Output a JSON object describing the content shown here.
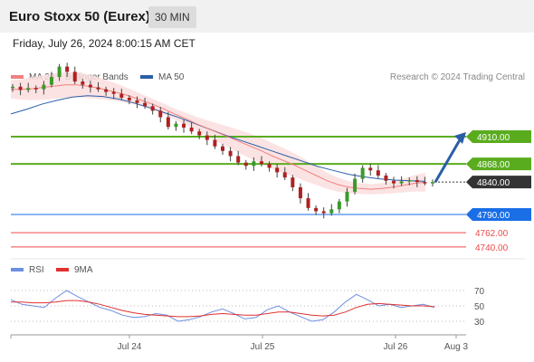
{
  "header": {
    "title": "Euro Stoxx 50 (Eurex)",
    "timeframe": "30 MIN",
    "timestamp": "Friday, July 26, 2024 8:00:15 AM CET"
  },
  "legend": {
    "ma20_label": "MA 20 + Bollinger Bands",
    "ma50_label": "MA 50",
    "credit": "Research © 2024 Trading Central",
    "rsi_label": "RSI",
    "ma9_label": "9MA"
  },
  "colors": {
    "ma20": "#f08080",
    "ma50": "#2a5fa8",
    "bollinger_fill": "#fcdede",
    "resistance": "#5aac1f",
    "current": "#333333",
    "support_blue": "#1a6ee6",
    "support_red": "#f04a4a",
    "arrow": "#2a5fa8",
    "rsi": "#6c8fe0",
    "rsi_ma9": "#e03030",
    "candle_up": "#3a9a2a",
    "candle_down": "#b02020"
  },
  "price_levels": [
    {
      "value": 4910.0,
      "label": "4910.00",
      "kind": "resistance"
    },
    {
      "value": 4868.0,
      "label": "4868.00",
      "kind": "resistance"
    },
    {
      "value": 4840.0,
      "label": "4840.00",
      "kind": "current"
    },
    {
      "value": 4790.0,
      "label": "4790.00",
      "kind": "support_blue"
    },
    {
      "value": 4762.0,
      "label": "4762.00",
      "kind": "support_red"
    },
    {
      "value": 4740.0,
      "label": "4740.00",
      "kind": "support_red"
    }
  ],
  "chart_data": {
    "type": "line",
    "title": "Euro Stoxx 50 (Eurex)",
    "x_tick_labels": [
      "Jul 24",
      "Jul 25",
      "Jul 26",
      "Aug 3"
    ],
    "close_prices": [
      4987,
      4982,
      4985,
      4983,
      4990,
      5002,
      5018,
      5010,
      4995,
      4990,
      4986,
      4983,
      4979,
      4976,
      4970,
      4966,
      4962,
      4957,
      4950,
      4940,
      4925,
      4930,
      4924,
      4918,
      4912,
      4905,
      4895,
      4888,
      4880,
      4870,
      4865,
      4872,
      4868,
      4862,
      4855,
      4847,
      4832,
      4815,
      4800,
      4795,
      4792,
      4798,
      4810,
      4825,
      4845,
      4862,
      4858,
      4850,
      4842,
      4838,
      4841,
      4843,
      4840,
      4839,
      4840
    ],
    "ma20": [
      4983,
      4983,
      4984,
      4986,
      4988,
      4990,
      4990,
      4988,
      4985,
      4981,
      4977,
      4972,
      4966,
      4960,
      4953,
      4945,
      4938,
      4930,
      4923,
      4916,
      4909,
      4902,
      4895,
      4888,
      4880,
      4873,
      4866,
      4858,
      4850,
      4842,
      4836,
      4832,
      4830,
      4829,
      4830,
      4832,
      4835,
      4838,
      4840
    ],
    "ma50": [
      4945,
      4952,
      4960,
      4966,
      4971,
      4973,
      4972,
      4968,
      4962,
      4955,
      4947,
      4939,
      4930,
      4921,
      4912,
      4904,
      4896,
      4888,
      4880,
      4872,
      4864,
      4858,
      4852,
      4848,
      4845,
      4843,
      4842,
      4841
    ],
    "rsi_axis_ticks": [
      70,
      50,
      30
    ],
    "rsi": [
      58,
      52,
      50,
      48,
      60,
      70,
      62,
      55,
      48,
      44,
      38,
      35,
      36,
      40,
      38,
      30,
      32,
      36,
      42,
      46,
      40,
      33,
      35,
      45,
      50,
      42,
      36,
      30,
      32,
      42,
      55,
      65,
      58,
      50,
      52,
      48,
      50,
      52,
      48
    ],
    "rsi_ma9": [
      55,
      55,
      54,
      54,
      55,
      57,
      57,
      55,
      52,
      48,
      44,
      41,
      39,
      38,
      37,
      36,
      36,
      37,
      39,
      40,
      39,
      38,
      38,
      40,
      42,
      42,
      40,
      38,
      37,
      38,
      42,
      48,
      52,
      53,
      52,
      51,
      50,
      50,
      49
    ]
  }
}
